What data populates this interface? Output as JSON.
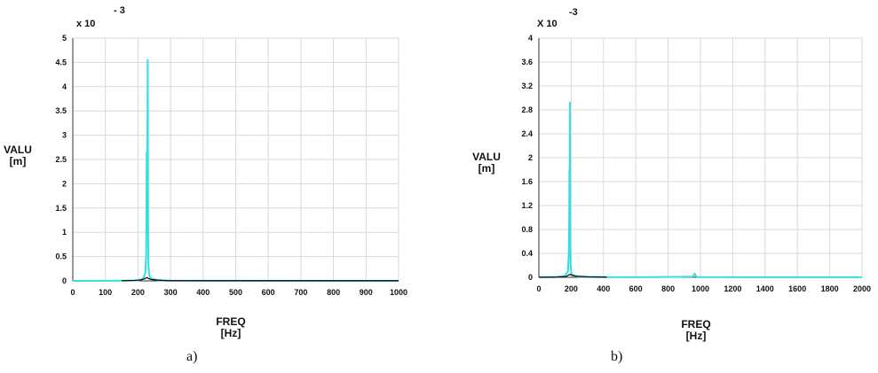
{
  "chart_data": [
    {
      "type": "line",
      "caption": "a)",
      "multiplier": "x 10",
      "exponent": "- 3",
      "ylabel": "VALU",
      "ylabel_unit": "[m]",
      "xlabel": "FREQ",
      "xlabel_unit": "[Hz]",
      "xlim": [
        0,
        1000
      ],
      "ylim": [
        0,
        5
      ],
      "xticks": [
        0,
        100,
        200,
        300,
        400,
        500,
        600,
        700,
        800,
        900,
        1000
      ],
      "yticks": [
        "0",
        "0.5",
        "1",
        "1.5",
        "2",
        "2.5",
        "3",
        "3.5",
        "4",
        "4.5",
        "5"
      ],
      "grid": true,
      "series": [
        {
          "color": "#33e0e0",
          "x": [
            0,
            150,
            200,
            215,
            222,
            225,
            226,
            227,
            228,
            229,
            230,
            231,
            232,
            235,
            240,
            260,
            300,
            400,
            500,
            1000
          ],
          "y": [
            0,
            0.003,
            0.01,
            0.04,
            0.15,
            0.5,
            1.2,
            2.65,
            1.5,
            2.6,
            4.55,
            1.2,
            0.35,
            0.12,
            0.05,
            0.015,
            0.005,
            0.002,
            0.001,
            0
          ]
        },
        {
          "color": "#111111",
          "x": [
            150,
            190,
            210,
            220,
            225,
            228,
            232,
            240,
            260,
            290,
            900,
            1000
          ],
          "y": [
            0.003,
            0.01,
            0.02,
            0.04,
            0.06,
            0.07,
            0.05,
            0.03,
            0.015,
            0.004,
            0.004,
            0.004
          ]
        }
      ]
    },
    {
      "type": "line",
      "caption": "b)",
      "multiplier": "X 10",
      "exponent": "-3",
      "ylabel": "VALU",
      "ylabel_unit": "[m]",
      "xlabel": "FREQ",
      "xlabel_unit": "[Hz]",
      "xlim": [
        0,
        2000
      ],
      "ylim": [
        0,
        4
      ],
      "xticks": [
        0,
        200,
        400,
        600,
        800,
        1000,
        1200,
        1400,
        1600,
        1800,
        2000
      ],
      "yticks": [
        "0",
        "0.4",
        "0.8",
        "1.2",
        "1.6",
        "2",
        "2.4",
        "2.8",
        "3.2",
        "3.6",
        "4"
      ],
      "grid": true,
      "series": [
        {
          "color": "#33e0e0",
          "x": [
            0,
            100,
            160,
            180,
            185,
            188,
            189,
            190,
            191,
            192,
            193,
            194,
            196,
            200,
            210,
            250,
            400,
            600,
            950,
            960,
            965,
            970,
            980,
            1200,
            2000
          ],
          "y": [
            0,
            0.003,
            0.02,
            0.1,
            0.4,
            1.0,
            1.8,
            1.1,
            2.3,
            2.92,
            1.5,
            0.5,
            0.2,
            0.08,
            0.03,
            0.01,
            0.004,
            0.002,
            0.01,
            0.04,
            0.06,
            0.03,
            0.005,
            0.002,
            0.001
          ]
        },
        {
          "color": "#111111",
          "x": [
            0,
            120,
            170,
            185,
            192,
            200,
            230,
            300,
            420
          ],
          "y": [
            0.002,
            0.005,
            0.015,
            0.04,
            0.05,
            0.04,
            0.02,
            0.008,
            0.003
          ]
        }
      ]
    }
  ]
}
